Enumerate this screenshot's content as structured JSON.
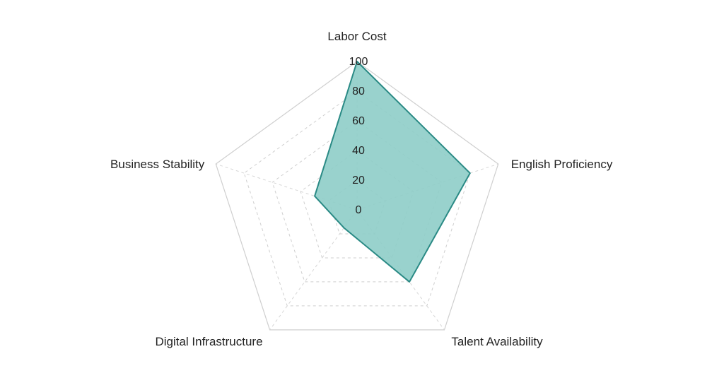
{
  "chart_data": {
    "type": "radar",
    "axes": [
      "Labor Cost",
      "English Proficiency",
      "Talent Availability",
      "Digital Infrastructure",
      "Business Stability"
    ],
    "series": [
      {
        "values": [
          100,
          80,
          60,
          15,
          30
        ]
      }
    ],
    "radial_ticks": [
      "0",
      "20",
      "40",
      "60",
      "80",
      "100"
    ],
    "rlim": [
      0,
      100
    ],
    "grid": true,
    "colors": {
      "fill": "#8ecdc8",
      "stroke": "#2a8a85"
    }
  }
}
